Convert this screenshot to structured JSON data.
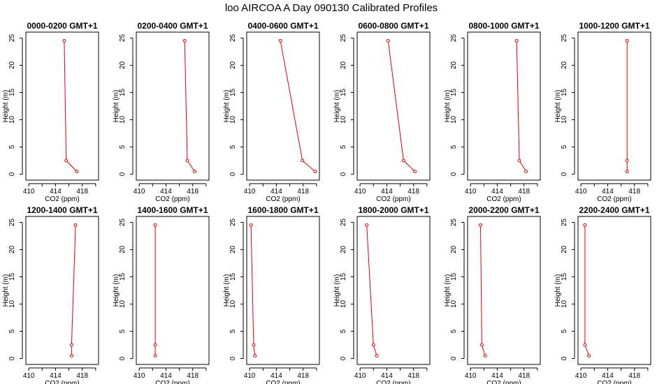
{
  "title": "loo AIRCOA A  Day 090130  Calibrated Profiles",
  "colors": {
    "line": "#e00000",
    "axis": "#000000",
    "background": "#ffffff"
  },
  "chart_data": [
    {
      "type": "line",
      "title": "0000-0200 GMT+1",
      "xlabel": "CO2 (ppm)",
      "ylabel": "Height (m)",
      "xlim": [
        410,
        420
      ],
      "ylim": [
        0,
        25
      ],
      "xticks": [
        410,
        414,
        418
      ],
      "yticks": [
        0,
        5,
        10,
        15,
        20,
        25
      ],
      "grid": false,
      "series": [
        {
          "x": [
            417.2,
            415.6,
            415.3
          ],
          "y": [
            0.5,
            2.5,
            24.5
          ]
        }
      ]
    },
    {
      "type": "line",
      "title": "0200-0400 GMT+1",
      "xlabel": "CO2 (ppm)",
      "ylabel": "Height (m)",
      "xlim": [
        410,
        420
      ],
      "ylim": [
        0,
        25
      ],
      "xticks": [
        410,
        414,
        418
      ],
      "yticks": [
        0,
        5,
        10,
        15,
        20,
        25
      ],
      "grid": false,
      "series": [
        {
          "x": [
            418.3,
            417.2,
            416.8
          ],
          "y": [
            0.5,
            2.5,
            24.5
          ]
        }
      ]
    },
    {
      "type": "line",
      "title": "0400-0600 GMT+1",
      "xlabel": "CO2 (ppm)",
      "ylabel": "Height (m)",
      "xlim": [
        410,
        420
      ],
      "ylim": [
        0,
        25
      ],
      "xticks": [
        410,
        414,
        418
      ],
      "yticks": [
        0,
        5,
        10,
        15,
        20,
        25
      ],
      "grid": false,
      "series": [
        {
          "x": [
            419.8,
            417.9,
            414.6
          ],
          "y": [
            0.5,
            2.5,
            24.5
          ]
        }
      ]
    },
    {
      "type": "line",
      "title": "0600-0800 GMT+1",
      "xlabel": "CO2 (ppm)",
      "ylabel": "Height (m)",
      "xlim": [
        410,
        420
      ],
      "ylim": [
        0,
        25
      ],
      "xticks": [
        410,
        414,
        418
      ],
      "yticks": [
        0,
        5,
        10,
        15,
        20,
        25
      ],
      "grid": false,
      "series": [
        {
          "x": [
            418.2,
            416.5,
            414.2
          ],
          "y": [
            0.5,
            2.5,
            24.5
          ]
        }
      ]
    },
    {
      "type": "line",
      "title": "0800-1000 GMT+1",
      "xlabel": "CO2 (ppm)",
      "ylabel": "Height (m)",
      "xlim": [
        410,
        420
      ],
      "ylim": [
        0,
        25
      ],
      "xticks": [
        410,
        414,
        418
      ],
      "yticks": [
        0,
        5,
        10,
        15,
        20,
        25
      ],
      "grid": false,
      "series": [
        {
          "x": [
            418.3,
            417.3,
            416.9
          ],
          "y": [
            0.5,
            2.5,
            24.5
          ]
        }
      ]
    },
    {
      "type": "line",
      "title": "1000-1200 GMT+1",
      "xlabel": "CO2 (ppm)",
      "ylabel": "Height (m)",
      "xlim": [
        410,
        420
      ],
      "ylim": [
        0,
        25
      ],
      "xticks": [
        410,
        414,
        418
      ],
      "yticks": [
        0,
        5,
        10,
        15,
        20,
        25
      ],
      "grid": false,
      "series": [
        {
          "x": [
            416.9,
            416.9,
            416.9
          ],
          "y": [
            0.5,
            2.5,
            24.5
          ]
        }
      ]
    },
    {
      "type": "line",
      "title": "1200-1400 GMT+1",
      "xlabel": "CO2 (ppm)",
      "ylabel": "Height (m)",
      "xlim": [
        410,
        420
      ],
      "ylim": [
        0,
        25
      ],
      "xticks": [
        410,
        414,
        418
      ],
      "yticks": [
        0,
        5,
        10,
        15,
        20,
        25
      ],
      "grid": false,
      "series": [
        {
          "x": [
            416.4,
            416.4,
            417.0
          ],
          "y": [
            0.5,
            2.5,
            24.5
          ]
        }
      ]
    },
    {
      "type": "line",
      "title": "1400-1600 GMT+1",
      "xlabel": "CO2 (ppm)",
      "ylabel": "Height (m)",
      "xlim": [
        410,
        420
      ],
      "ylim": [
        0,
        25
      ],
      "xticks": [
        410,
        414,
        418
      ],
      "yticks": [
        0,
        5,
        10,
        15,
        20,
        25
      ],
      "grid": false,
      "series": [
        {
          "x": [
            412.4,
            412.4,
            412.4
          ],
          "y": [
            0.5,
            2.5,
            24.5
          ]
        }
      ]
    },
    {
      "type": "line",
      "title": "1600-1800 GMT+1",
      "xlabel": "CO2 (ppm)",
      "ylabel": "Height (m)",
      "xlim": [
        410,
        420
      ],
      "ylim": [
        0,
        25
      ],
      "xticks": [
        410,
        414,
        418
      ],
      "yticks": [
        0,
        5,
        10,
        15,
        20,
        25
      ],
      "grid": false,
      "series": [
        {
          "x": [
            410.8,
            410.6,
            410.2
          ],
          "y": [
            0.5,
            2.5,
            24.5
          ]
        }
      ]
    },
    {
      "type": "line",
      "title": "1800-2000 GMT+1",
      "xlabel": "CO2 (ppm)",
      "ylabel": "Height (m)",
      "xlim": [
        410,
        420
      ],
      "ylim": [
        0,
        25
      ],
      "xticks": [
        410,
        414,
        418
      ],
      "yticks": [
        0,
        5,
        10,
        15,
        20,
        25
      ],
      "grid": false,
      "series": [
        {
          "x": [
            412.5,
            412.0,
            411.0
          ],
          "y": [
            0.5,
            2.5,
            24.5
          ]
        }
      ]
    },
    {
      "type": "line",
      "title": "2000-2200 GMT+1",
      "xlabel": "CO2 (ppm)",
      "ylabel": "Height (m)",
      "xlim": [
        410,
        420
      ],
      "ylim": [
        0,
        25
      ],
      "xticks": [
        410,
        414,
        418
      ],
      "yticks": [
        0,
        5,
        10,
        15,
        20,
        25
      ],
      "grid": false,
      "series": [
        {
          "x": [
            412.2,
            411.7,
            411.5
          ],
          "y": [
            0.5,
            2.5,
            24.5
          ]
        }
      ]
    },
    {
      "type": "line",
      "title": "2200-2400 GMT+1",
      "xlabel": "CO2 (ppm)",
      "ylabel": "Height (m)",
      "xlim": [
        410,
        420
      ],
      "ylim": [
        0,
        25
      ],
      "xticks": [
        410,
        414,
        418
      ],
      "yticks": [
        0,
        5,
        10,
        15,
        20,
        25
      ],
      "grid": false,
      "series": [
        {
          "x": [
            411.2,
            410.6,
            410.6
          ],
          "y": [
            0.5,
            2.5,
            24.5
          ]
        }
      ]
    }
  ]
}
